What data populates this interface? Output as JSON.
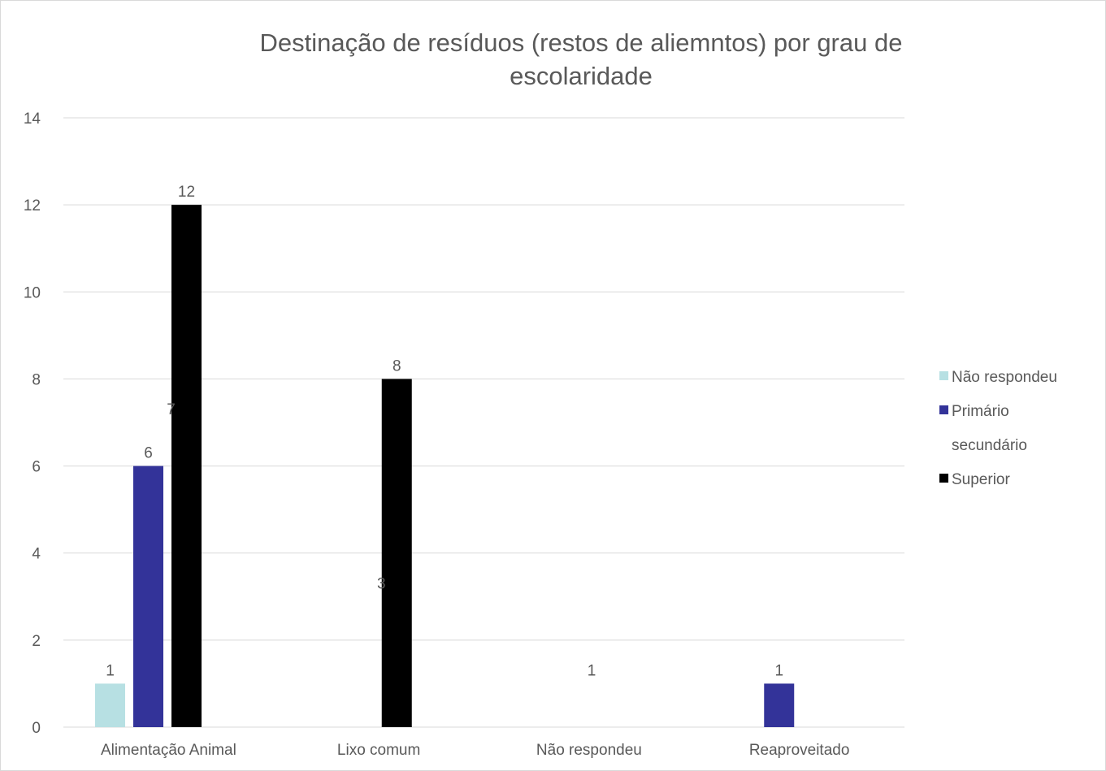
{
  "chart_data": {
    "type": "bar",
    "title": "Destinação de resíduos (restos de aliemntos) por grau de escolaridade",
    "categories": [
      "Alimentação Animal",
      "Lixo comum",
      "Não respondeu",
      "Reaproveitado"
    ],
    "series": [
      {
        "name": "Não respondeu",
        "color": "#b7e0e3",
        "values": [
          1,
          0,
          0,
          0
        ]
      },
      {
        "name": "Primário secundário",
        "color": "#333399",
        "values": [
          6,
          0,
          0,
          1
        ]
      },
      {
        "name": "Superior",
        "color": "#000000",
        "values": [
          12,
          8,
          0,
          0
        ]
      }
    ],
    "data_labels": [
      {
        "text": "1",
        "category": "Alimentação Animal",
        "series": "Não respondeu"
      },
      {
        "text": "6",
        "category": "Alimentação Animal",
        "series": "Primário secundário"
      },
      {
        "text": "7",
        "category": "Alimentação Animal",
        "series": "",
        "value": 7
      },
      {
        "text": "12",
        "category": "Alimentação Animal",
        "series": "Superior"
      },
      {
        "text": "3",
        "category": "Lixo comum",
        "series": "",
        "value": 3
      },
      {
        "text": "8",
        "category": "Lixo comum",
        "series": "Superior"
      },
      {
        "text": "1",
        "category": "Não respondeu",
        "series": "",
        "value": 1
      },
      {
        "text": "1",
        "category": "Reaproveitado",
        "series": "Primário secundário"
      }
    ],
    "ylim": [
      0,
      14
    ],
    "yticks": [
      0,
      2,
      4,
      6,
      8,
      10,
      12,
      14
    ],
    "grid": true,
    "legend_position": "right",
    "xlabel": "",
    "ylabel": ""
  },
  "legend": {
    "items": [
      {
        "lines": [
          "Não respondeu"
        ],
        "color": "#b7e0e3"
      },
      {
        "lines": [
          "Primário",
          "secundário"
        ],
        "color": "#333399"
      },
      {
        "lines": [
          "Superior"
        ],
        "color": "#000000"
      }
    ]
  }
}
